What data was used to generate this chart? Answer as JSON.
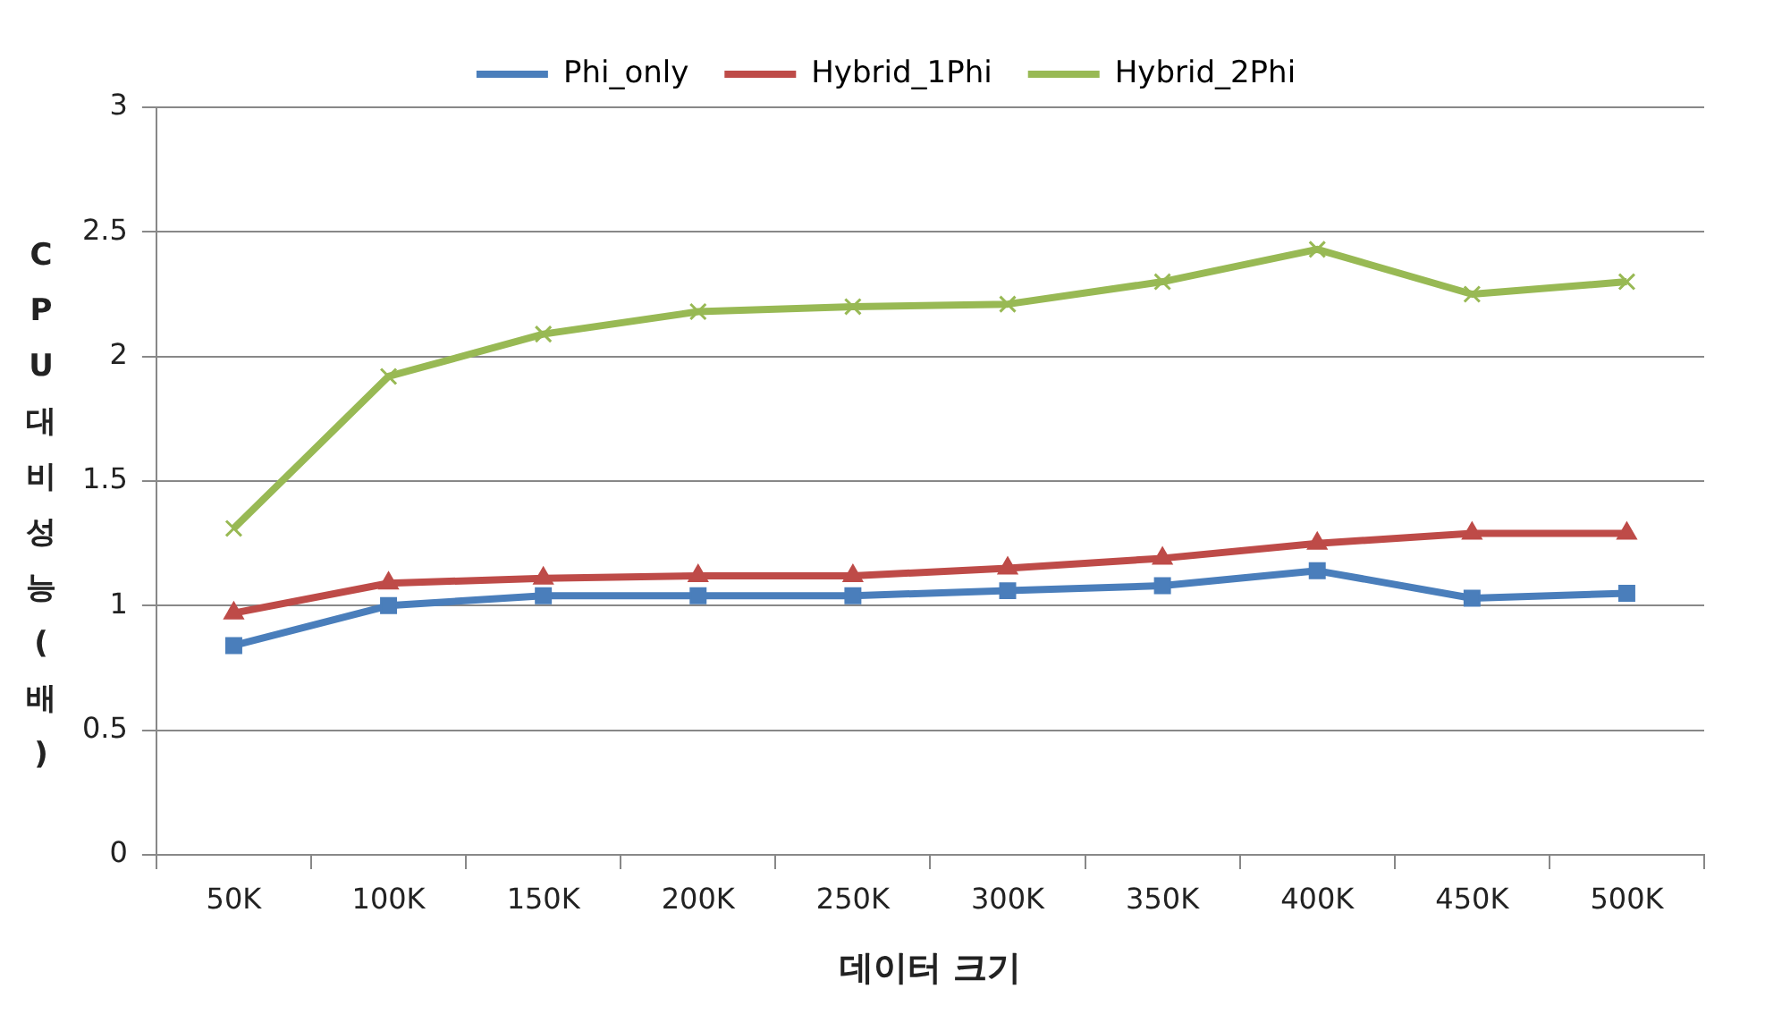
{
  "chart_data": {
    "type": "line",
    "xlabel": "데이터 크기",
    "ylabel": "CPU대비성능(배)",
    "categories": [
      "50K",
      "100K",
      "150K",
      "200K",
      "250K",
      "300K",
      "350K",
      "400K",
      "450K",
      "500K"
    ],
    "series": [
      {
        "name": "Phi_only",
        "color": "#4a7ebb",
        "marker": "square",
        "values": [
          0.84,
          1.0,
          1.04,
          1.04,
          1.04,
          1.06,
          1.08,
          1.14,
          1.03,
          1.05
        ]
      },
      {
        "name": "Hybrid_1Phi",
        "color": "#be4b48",
        "marker": "triangle",
        "values": [
          0.97,
          1.09,
          1.11,
          1.12,
          1.12,
          1.15,
          1.19,
          1.25,
          1.29,
          1.29
        ]
      },
      {
        "name": "Hybrid_2Phi",
        "color": "#98b954",
        "marker": "cross",
        "values": [
          1.31,
          1.92,
          2.09,
          2.18,
          2.2,
          2.21,
          2.3,
          2.43,
          2.25,
          2.3
        ]
      }
    ],
    "ylim": [
      0,
      3
    ],
    "yticks": [
      0,
      0.5,
      1,
      1.5,
      2,
      2.5,
      3
    ],
    "grid": "y",
    "legend": "top",
    "line_style": "solid"
  }
}
